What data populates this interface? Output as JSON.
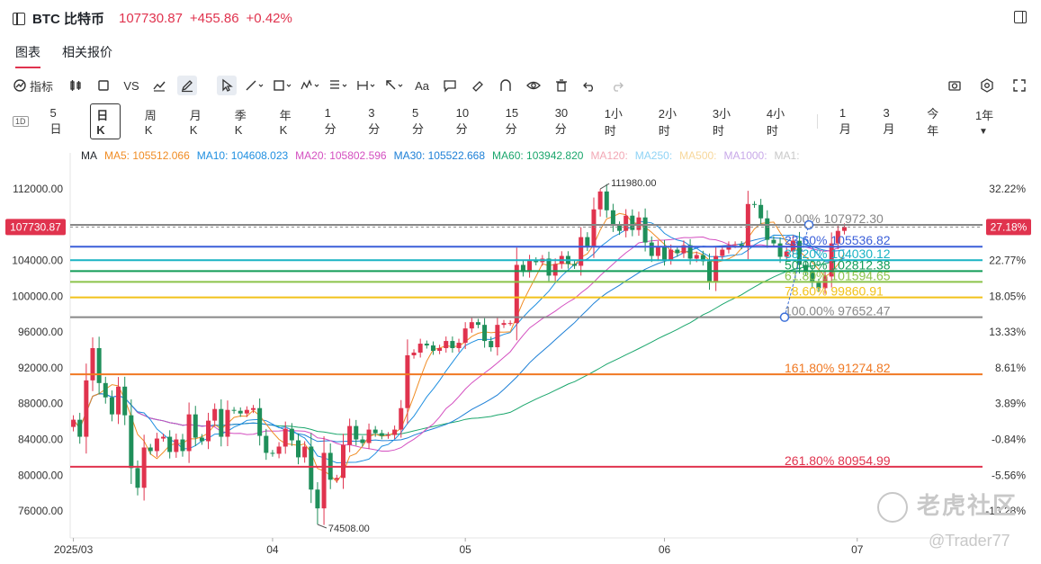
{
  "header": {
    "symbol": "BTC 比特币",
    "price": "107730.87",
    "change": "+455.86",
    "change_pct": "+0.42%"
  },
  "tabs": [
    "图表",
    "相关报价"
  ],
  "toolbar": {
    "indicator_label": "指标",
    "vs_label": "VS",
    "text_label": "Aa"
  },
  "periods": [
    "5日",
    "日K",
    "周K",
    "月K",
    "季K",
    "年K",
    "1分",
    "3分",
    "5分",
    "10分",
    "15分",
    "30分",
    "1小时",
    "2小时",
    "3小时",
    "4小时",
    "1月",
    "3月",
    "今年",
    "1年"
  ],
  "period_1d_badge": "1D",
  "ma_legend": [
    {
      "label": "MA",
      "color": "#1f2329"
    },
    {
      "label": "MA5: 105512.066",
      "color": "#f08c24"
    },
    {
      "label": "MA10: 104608.023",
      "color": "#1f8fe0"
    },
    {
      "label": "MA20: 105802.596",
      "color": "#d44fc0"
    },
    {
      "label": "MA30: 105522.668",
      "color": "#1c7fd6"
    },
    {
      "label": "MA60: 103942.820",
      "color": "#1aa66c"
    },
    {
      "label": "MA120:",
      "color": "#f2a7b4"
    },
    {
      "label": "MA250:",
      "color": "#8fd3f5"
    },
    {
      "label": "MA500:",
      "color": "#f7d79a"
    },
    {
      "label": "MA1000:",
      "color": "#c8a8e8"
    },
    {
      "label": "MA1:",
      "color": "#c8c8c8"
    }
  ],
  "chart_data": {
    "type": "candlestick",
    "ylim": [
      73000,
      114500
    ],
    "y_ticks": [
      "112000.00",
      "104000.00",
      "100000.00",
      "96000.00",
      "92000.00",
      "88000.00",
      "84000.00",
      "80000.00",
      "76000.00"
    ],
    "right_ticks": [
      "32.22%",
      "22.77%",
      "18.05%",
      "13.33%",
      "8.61%",
      "3.89%",
      "-0.84%",
      "-5.56%",
      "-10.28%"
    ],
    "right_tick_values": [
      112000,
      104000,
      100000,
      96000,
      92000,
      88000,
      84000,
      80000,
      76000
    ],
    "x_labels": [
      "2025/03",
      "04",
      "05",
      "06",
      "07"
    ],
    "x_label_days": [
      0,
      31,
      61,
      92,
      122
    ],
    "current_price_label": "107730.87",
    "current_price": 107730.87,
    "current_pct_label": "27.18%",
    "high_label": "111980.00",
    "high_value": 111980,
    "high_day": 82,
    "low_label": "74508.00",
    "low_value": 74508,
    "low_day": 38,
    "fib_levels": [
      {
        "label": "0.00%",
        "value": 107972.3,
        "value_label": "107972.30",
        "color": "#888888"
      },
      {
        "label": "23.60%",
        "value": 105536.82,
        "value_label": "105536.82",
        "color": "#3b5fd9"
      },
      {
        "label": "38.20%",
        "value": 104030.12,
        "value_label": "104030.12",
        "color": "#1ab3c4"
      },
      {
        "label": "50.00%",
        "value": 102812.38,
        "value_label": "102812.38",
        "color": "#129c58"
      },
      {
        "label": "61.80%",
        "value": 101594.65,
        "value_label": "101594.65",
        "color": "#8bc34a"
      },
      {
        "label": "78.60%",
        "value": 99860.91,
        "value_label": "99860.91",
        "color": "#f2c21a"
      },
      {
        "label": "100.00%",
        "value": 97652.47,
        "value_label": "97652.47",
        "color": "#888888"
      },
      {
        "label": "161.80%",
        "value": 91274.82,
        "value_label": "91274.82",
        "color": "#f07822"
      },
      {
        "label": "261.80%",
        "value": 80954.99,
        "value_label": "80954.99",
        "color": "#e0334e"
      }
    ],
    "closes": [
      86200,
      84300,
      90600,
      94200,
      90300,
      88700,
      86800,
      89900,
      86700,
      80800,
      78600,
      83100,
      82700,
      84100,
      84300,
      82600,
      84000,
      82700,
      86800,
      84200,
      83800,
      86100,
      87400,
      84300,
      87300,
      87200,
      86900,
      87300,
      87500,
      84400,
      82500,
      82400,
      83200,
      85200,
      83900,
      82000,
      83200,
      78400,
      76300,
      82500,
      79500,
      79700,
      83400,
      85500,
      84000,
      83600,
      85100,
      84700,
      84400,
      84500,
      85100,
      87500,
      93400,
      93700,
      94700,
      94500,
      93900,
      94200,
      95000,
      94200,
      94800,
      96400,
      97100,
      96800,
      95000,
      94300,
      96800,
      97000,
      97000,
      103500,
      102700,
      104000,
      103800,
      104200,
      102300,
      103600,
      104500,
      103600,
      103400,
      106600,
      105600,
      109700,
      111700,
      109600,
      107900,
      107300,
      109000,
      107400,
      108800,
      106000,
      104500,
      105600,
      104100,
      105200,
      104800,
      105700,
      104200,
      104600,
      103900,
      101600,
      104500,
      105200,
      105700,
      105800,
      105600,
      110300,
      110200,
      108700,
      106300,
      105900,
      104400,
      105000,
      106200,
      103500,
      102800,
      101500,
      100900,
      102200,
      105900,
      107300,
      107730
    ]
  },
  "watermark": {
    "text": "老虎社区",
    "credit": "@Trader77"
  }
}
